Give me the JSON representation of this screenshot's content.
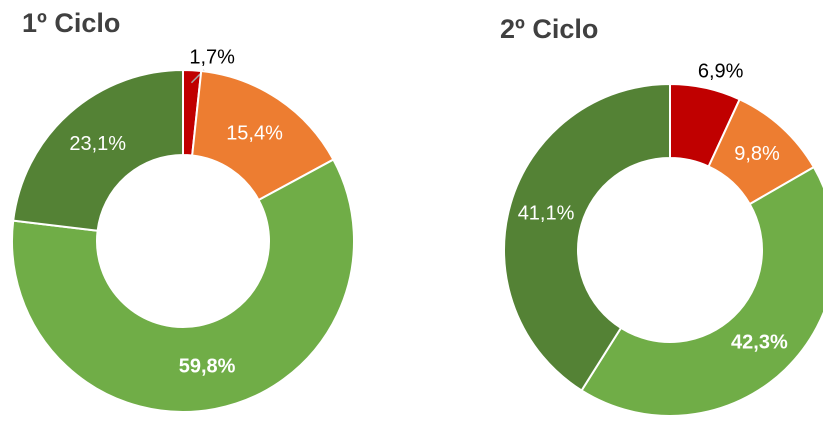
{
  "chart_data": [
    {
      "type": "pie",
      "title": "1º Ciclo",
      "values": [
        1.7,
        15.4,
        59.8,
        23.1
      ],
      "value_labels": [
        "1,7%",
        "15,4%",
        "59,8%",
        "23,1%"
      ],
      "colors": [
        "#c00000",
        "#ed7d31",
        "#70ad47",
        "#548235"
      ]
    },
    {
      "type": "pie",
      "title": "2º Ciclo",
      "values": [
        6.9,
        9.8,
        42.3,
        41.1
      ],
      "value_labels": [
        "6,9%",
        "9,8%",
        "42,3%",
        "41,1%"
      ],
      "colors": [
        "#c00000",
        "#ed7d31",
        "#70ad47",
        "#548235"
      ]
    }
  ]
}
